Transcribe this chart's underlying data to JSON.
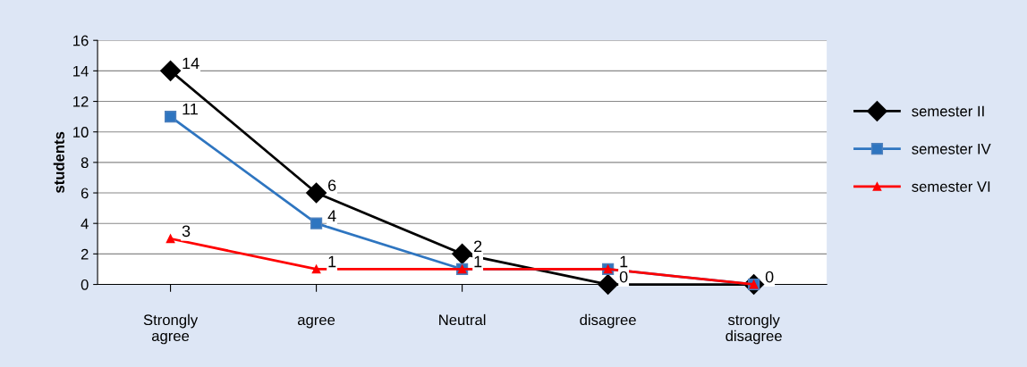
{
  "chart_data": {
    "type": "line",
    "ylabel": "students",
    "categories": [
      "Strongly\nagree",
      "agree",
      "Neutral",
      "disagree",
      "strongly\ndisagree"
    ],
    "series": [
      {
        "name": "semester II",
        "color": "#000000",
        "marker": "diamond",
        "values": [
          14,
          6,
          2,
          0,
          0
        ],
        "value_labels": [
          "14",
          "6",
          "2",
          "0",
          "0"
        ]
      },
      {
        "name": "semester IV",
        "color": "#2e75c0",
        "marker": "square",
        "values": [
          11,
          4,
          1,
          1,
          0
        ],
        "value_labels": [
          "11",
          "4",
          null,
          null,
          null
        ]
      },
      {
        "name": "semester VI",
        "color": "#ff0000",
        "marker": "triangle",
        "values": [
          3,
          1,
          1,
          1,
          0
        ],
        "value_labels": [
          "3",
          "1",
          "1",
          "1",
          null
        ]
      }
    ],
    "ylim": [
      0,
      16
    ],
    "yticks": [
      0,
      2,
      4,
      6,
      8,
      10,
      12,
      14,
      16
    ],
    "grid": "y",
    "legend": "right",
    "line_style": "solid"
  }
}
